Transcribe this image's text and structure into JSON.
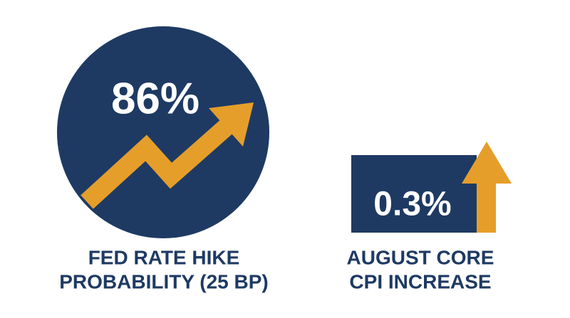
{
  "stats": [
    {
      "value": "86%",
      "label_lines": [
        "FED RATE HIKE",
        "PROBABILITY (25 BP)"
      ]
    },
    {
      "value": "0.3%",
      "label_lines": [
        "AUGUST CORE",
        "CPI INCREASE"
      ]
    }
  ]
}
